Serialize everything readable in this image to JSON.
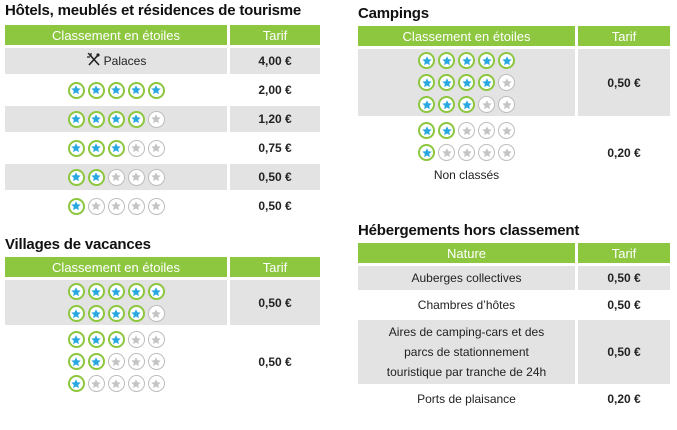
{
  "hotels": {
    "title": "Hôtels, meublés et résidences de tourisme",
    "header": {
      "col1": "Classement en étoiles",
      "col2": "Tarif"
    },
    "palaces_label": "Palaces",
    "rows": [
      {
        "stars": 5,
        "tarif": "2,00 €"
      },
      {
        "stars": 4,
        "tarif": "1,20 €"
      },
      {
        "stars": 3,
        "tarif": "0,75 €"
      },
      {
        "stars": 2,
        "tarif": "0,50 €"
      },
      {
        "stars": 1,
        "tarif": "0,50 €"
      }
    ],
    "palaces_tarif": "4,00 €"
  },
  "villages": {
    "title": "Villages de vacances",
    "header": {
      "col1": "Classement en étoiles",
      "col2": "Tarif"
    },
    "groups": [
      {
        "stars": [
          5,
          4
        ],
        "tarif": "0,50 €"
      },
      {
        "stars": [
          3,
          2,
          1
        ],
        "tarif": "0,50 €"
      }
    ]
  },
  "campings": {
    "title": "Campings",
    "header": {
      "col1": "Classement en étoiles",
      "col2": "Tarif"
    },
    "groups": [
      {
        "stars": [
          5,
          4,
          3
        ],
        "tarif": "0,50 €"
      },
      {
        "stars": [
          2,
          1
        ],
        "tarif": "0,20 €",
        "extra": "Non classés"
      }
    ]
  },
  "hors": {
    "title": "Hébergements hors classement",
    "header": {
      "col1": "Nature",
      "col2": "Tarif"
    },
    "rows": [
      {
        "nature": "Auberges collectives",
        "tarif": "0,50 €"
      },
      {
        "nature": "Chambres d’hôtes",
        "tarif": "0,50 €"
      },
      {
        "nature": "Aires de camping-cars et des parcs de stationnement touristique par tranche de 24h",
        "tarif": "0,50 €"
      },
      {
        "nature": "Ports de plaisance",
        "tarif": "0,20 €"
      }
    ]
  },
  "colors": {
    "header_green": "#8dc63f",
    "star_blue": "#29a8e0",
    "row_grey": "#e3e3e3"
  },
  "icons": {
    "palaces": "crossed-cutlery-icon",
    "star_on": "blue-star-icon",
    "star_off": "grey-star-icon"
  }
}
